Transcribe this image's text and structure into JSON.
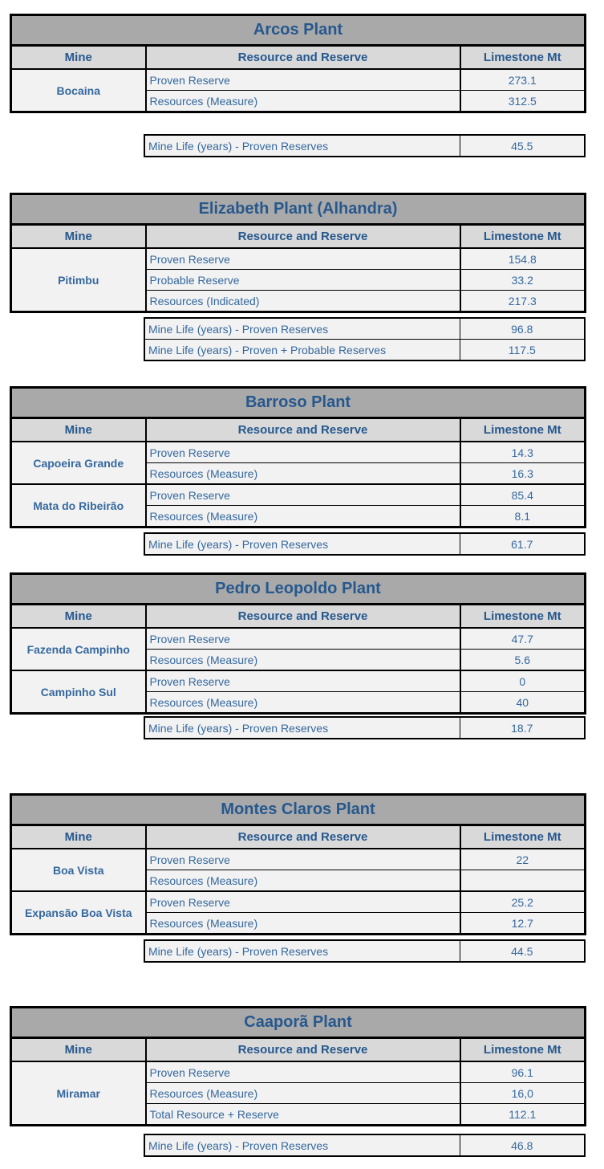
{
  "columns": {
    "mine": "Mine",
    "resource": "Resource and Reserve",
    "limestone": "Limestone Mt"
  },
  "colors": {
    "title_bg": "#a9a9a9",
    "header_bg": "#d9d9d9",
    "row_bg": "#f2f2f2",
    "heading_text": "#26588E",
    "data_text": "#35689E",
    "border": "#000000"
  },
  "tables": [
    {
      "title": "Arcos Plant",
      "groups": [
        {
          "mine": "Bocaina",
          "rows": [
            {
              "label": "Proven Reserve",
              "value": "273.1"
            },
            {
              "label": "Resources (Measure)",
              "value": "312.5"
            }
          ]
        }
      ],
      "mine_life": [
        {
          "label": "Mine Life (years) - Proven Reserves",
          "value": "45.5"
        }
      ]
    },
    {
      "title": "Elizabeth Plant (Alhandra)",
      "groups": [
        {
          "mine": "Pitimbu",
          "rows": [
            {
              "label": "Proven Reserve",
              "value": "154.8"
            },
            {
              "label": "Probable Reserve",
              "value": "33.2"
            },
            {
              "label": "Resources (Indicated)",
              "value": "217.3"
            }
          ]
        }
      ],
      "mine_life": [
        {
          "label": "Mine Life (years) - Proven Reserves",
          "value": "96.8"
        },
        {
          "label": "Mine Life (years) - Proven + Probable Reserves",
          "value": "117.5"
        }
      ]
    },
    {
      "title": "Barroso Plant",
      "groups": [
        {
          "mine": "Capoeira Grande",
          "rows": [
            {
              "label": "Proven Reserve",
              "value": "14.3"
            },
            {
              "label": "Resources (Measure)",
              "value": "16.3"
            }
          ]
        },
        {
          "mine": "Mata do Ribeirão",
          "rows": [
            {
              "label": "Proven Reserve",
              "value": "85.4"
            },
            {
              "label": "Resources (Measure)",
              "value": "8.1"
            }
          ]
        }
      ],
      "mine_life": [
        {
          "label": "Mine Life (years) - Proven Reserves",
          "value": "61.7"
        }
      ]
    },
    {
      "title": "Pedro Leopoldo Plant",
      "groups": [
        {
          "mine": "Fazenda Campinho",
          "rows": [
            {
              "label": "Proven Reserve",
              "value": "47.7"
            },
            {
              "label": "Resources (Measure)",
              "value": "5.6"
            }
          ]
        },
        {
          "mine": "Campinho Sul",
          "rows": [
            {
              "label": "Proven Reserve",
              "value": "0"
            },
            {
              "label": "Resources (Measure)",
              "value": "40"
            }
          ]
        }
      ],
      "mine_life": [
        {
          "label": "Mine Life (years) - Proven Reserves",
          "value": "18.7"
        }
      ]
    },
    {
      "title": "Montes Claros Plant",
      "groups": [
        {
          "mine": "Boa Vista",
          "rows": [
            {
              "label": "Proven Reserve",
              "value": "22"
            },
            {
              "label": "Resources (Measure)",
              "value": ""
            }
          ]
        },
        {
          "mine": "Expansão Boa Vista",
          "rows": [
            {
              "label": "Proven Reserve",
              "value": "25.2"
            },
            {
              "label": "Resources (Measure)",
              "value": "12.7"
            }
          ]
        }
      ],
      "mine_life": [
        {
          "label": "Mine Life (years) - Proven Reserves",
          "value": "44.5"
        }
      ]
    },
    {
      "title": "Caaporã Plant",
      "groups": [
        {
          "mine": "Miramar",
          "rows": [
            {
              "label": "Proven Reserve",
              "value": "96.1"
            },
            {
              "label": "Resources (Measure)",
              "value": "16,0"
            },
            {
              "label": "Total Resource + Reserve",
              "value": "112.1"
            }
          ]
        }
      ],
      "mine_life": [
        {
          "label": "Mine Life (years) - Proven Reserves",
          "value": "46.8"
        }
      ]
    }
  ]
}
